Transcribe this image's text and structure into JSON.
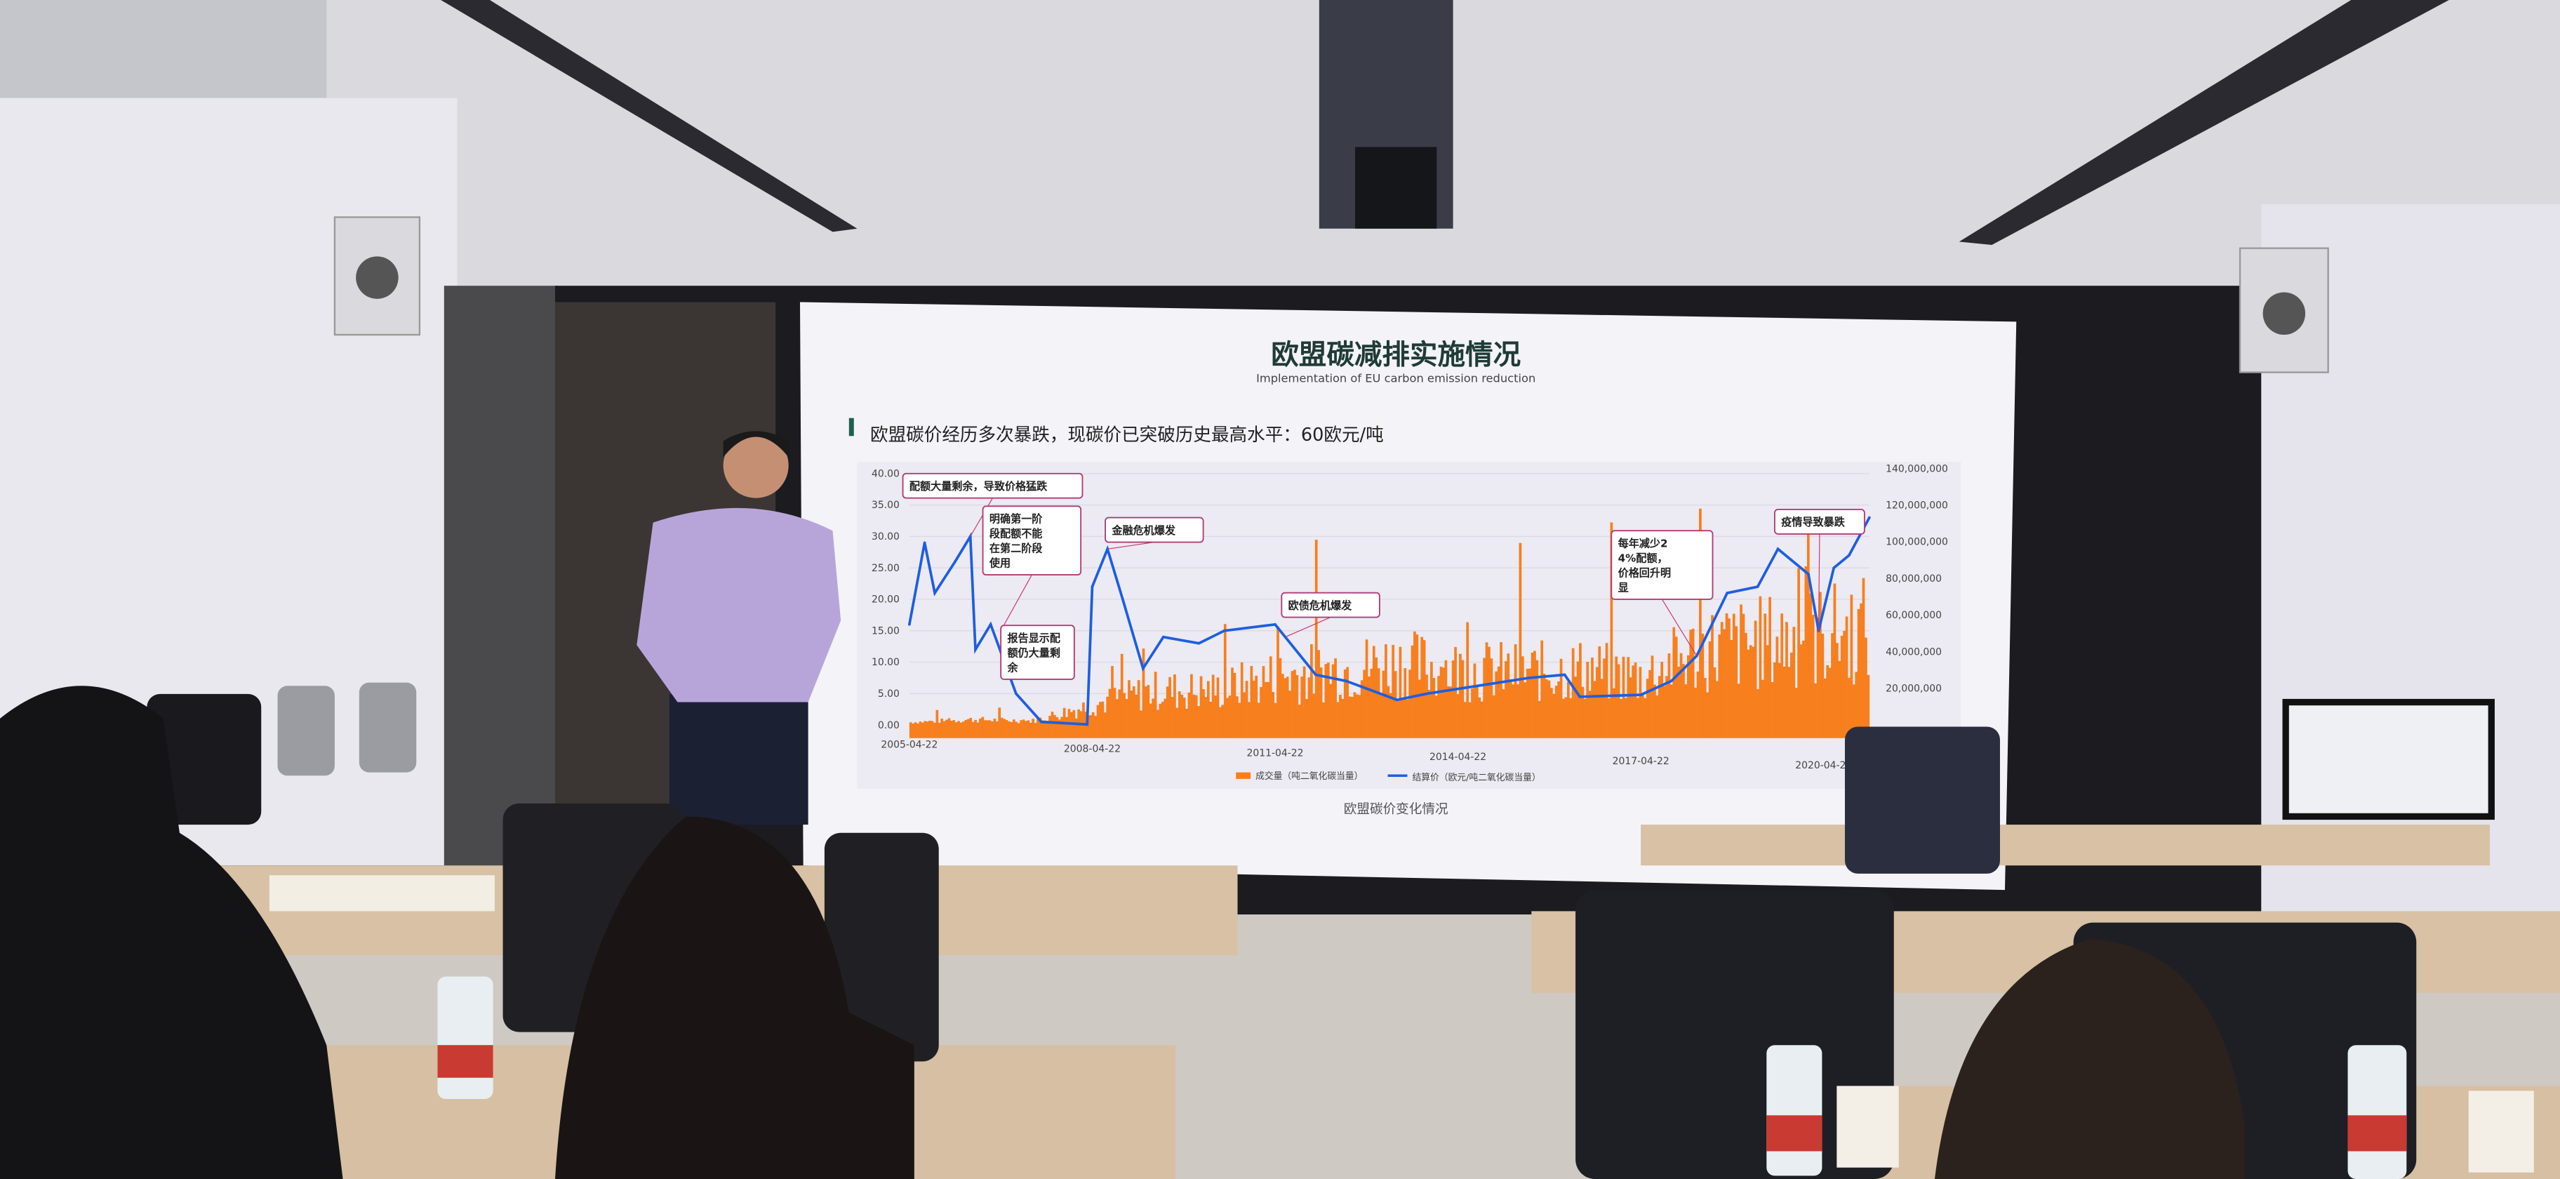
{
  "slide": {
    "title": "欧盟碳减排实施情况",
    "subtitle": "Implementation of EU carbon emission reduction",
    "headline": "欧盟碳价经历多次暴跌，现碳价已突破历史最高水平：60欧元/吨",
    "caption": "欧盟碳价变化情况",
    "accent_color": "#1f5f4f"
  },
  "chart_data": {
    "type": "line",
    "title": "",
    "x_ticks": [
      "2005-04-22",
      "2008-04-22",
      "2011-04-22",
      "2014-04-22",
      "2017-04-22",
      "2020-04-22"
    ],
    "y_left_ticks": [
      "0.00",
      "5.00",
      "10.00",
      "15.00",
      "20.00",
      "25.00",
      "30.00",
      "35.00",
      "40.00"
    ],
    "y_left_range": [
      0,
      40
    ],
    "y_right_ticks": [
      "20,000,000",
      "40,000,000",
      "60,000,000",
      "80,000,000",
      "100,000,000",
      "120,000,000",
      "140,000,000"
    ],
    "y_right_range": [
      0,
      140000000
    ],
    "grid": true,
    "legend_position": "bottom",
    "series": [
      {
        "name": "成交量（吨二氧化碳当量）",
        "type": "area",
        "axis": "right",
        "color": "#f77f1e",
        "x": [
          "2005-04",
          "2006-04",
          "2007-04",
          "2008-04",
          "2009-04",
          "2010-04",
          "2011-04",
          "2012-04",
          "2013-04",
          "2014-04",
          "2015-04",
          "2016-04",
          "2017-04",
          "2018-04",
          "2019-04",
          "2020-04",
          "2021-01"
        ],
        "values": [
          2000000,
          4000000,
          3000000,
          15000000,
          25000000,
          25000000,
          35000000,
          40000000,
          45000000,
          40000000,
          38000000,
          40000000,
          35000000,
          55000000,
          60000000,
          65000000,
          70000000
        ]
      },
      {
        "name": "结算价（欧元/吨二氧化碳当量）",
        "type": "line",
        "axis": "left",
        "color": "#1e5ee0",
        "x": [
          "2005-04",
          "2005-07",
          "2005-09",
          "2006-01",
          "2006-04",
          "2006-05",
          "2006-08",
          "2007-01",
          "2007-06",
          "2008-03",
          "2008-04",
          "2008-07",
          "2008-10",
          "2009-02",
          "2009-06",
          "2010-01",
          "2010-06",
          "2011-04",
          "2011-06",
          "2011-12",
          "2012-06",
          "2013-04",
          "2013-10",
          "2014-06",
          "2015-06",
          "2016-01",
          "2016-04",
          "2017-04",
          "2017-10",
          "2018-03",
          "2018-09",
          "2019-03",
          "2019-07",
          "2020-01",
          "2020-03",
          "2020-06",
          "2020-09",
          "2021-01"
        ],
        "values": [
          16,
          29,
          21,
          26,
          30,
          12,
          16,
          5,
          0.5,
          0.1,
          22,
          28,
          20,
          9,
          14,
          13,
          15,
          16,
          14,
          8,
          7,
          4,
          5,
          6,
          7.5,
          8,
          4.5,
          4.8,
          7,
          11,
          21,
          22,
          28,
          24,
          15,
          25,
          27,
          33
        ]
      }
    ],
    "annotations": [
      {
        "text": "配额大量剩余，导致价格猛跌",
        "date": "2006-04"
      },
      {
        "text": "明确第一阶段配额不能在第二阶段使用",
        "date": "2006-10"
      },
      {
        "text": "报告显示配额仍大量剩余",
        "date": "2007-04"
      },
      {
        "text": "金融危机爆发",
        "date": "2008-07"
      },
      {
        "text": "欧债危机爆发",
        "date": "2011-06"
      },
      {
        "text": "每年减少24%配额，价格回升明显",
        "date": "2018-03"
      },
      {
        "text": "疫情导致暴跌",
        "date": "2020-03"
      }
    ]
  }
}
